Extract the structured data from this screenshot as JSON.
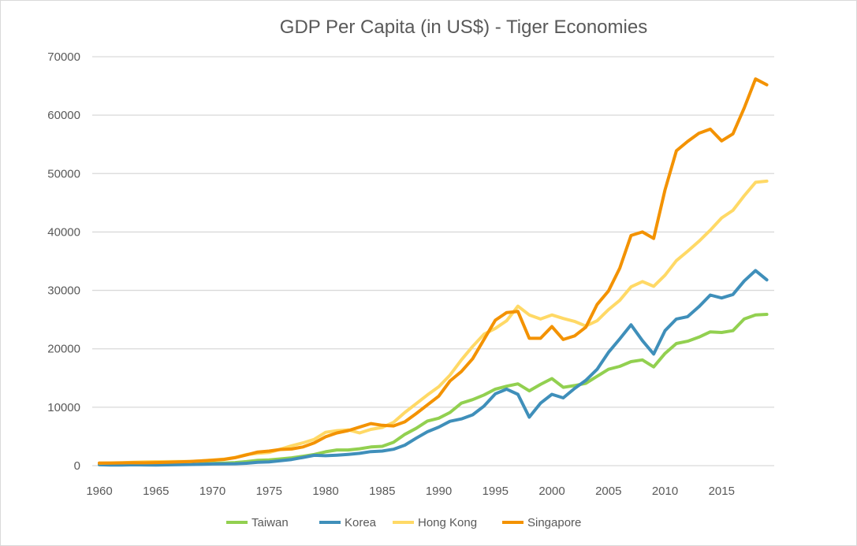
{
  "chart_data": {
    "type": "line",
    "title": "GDP Per Capita (in US$)  - Tiger Economies",
    "xlabel": "",
    "ylabel": "",
    "ylim": [
      0,
      70000
    ],
    "yticks": [
      "0",
      "10000",
      "20000",
      "30000",
      "40000",
      "50000",
      "60000",
      "70000"
    ],
    "xticks": [
      "1960",
      "1965",
      "1970",
      "1975",
      "1980",
      "1985",
      "1990",
      "1995",
      "2000",
      "2005",
      "2010",
      "2015"
    ],
    "x_start": 1960,
    "x_end": 2019,
    "grid": true,
    "legend_position": "bottom",
    "series": [
      {
        "name": "Taiwan",
        "color": "#92d050",
        "values": [
          160,
          150,
          160,
          180,
          200,
          220,
          240,
          270,
          300,
          340,
          390,
          440,
          520,
          690,
          920,
          980,
          1150,
          1330,
          1600,
          1920,
          2380,
          2690,
          2680,
          2880,
          3200,
          3300,
          3990,
          5350,
          6380,
          7630,
          8120,
          9100,
          10700,
          11300,
          12100,
          13100,
          13600,
          14000,
          12800,
          13900,
          14900,
          13400,
          13700,
          14100,
          15300,
          16500,
          17000,
          17800,
          18100,
          16900,
          19200,
          20900,
          21300,
          22000,
          22900,
          22800,
          23100,
          25100,
          25800,
          25900
        ]
      },
      {
        "name": "Korea",
        "color": "#3f8fba",
        "values": [
          158,
          94,
          106,
          146,
          124,
          108,
          133,
          161,
          198,
          243,
          280,
          300,
          320,
          400,
          560,
          650,
          830,
          1050,
          1400,
          1770,
          1700,
          1800,
          1930,
          2100,
          2400,
          2500,
          2800,
          3500,
          4700,
          5800,
          6600,
          7600,
          8000,
          8700,
          10200,
          12300,
          13100,
          12200,
          8300,
          10700,
          12200,
          11600,
          13200,
          14600,
          16500,
          19400,
          21700,
          24100,
          21400,
          19100,
          23100,
          25100,
          25500,
          27200,
          29200,
          28700,
          29300,
          31600,
          33400,
          31800
        ]
      },
      {
        "name": "Hong Kong",
        "color": "#ffd966",
        "values": [
          430,
          470,
          510,
          560,
          630,
          680,
          690,
          720,
          710,
          820,
          960,
          1100,
          1400,
          1900,
          2100,
          2250,
          2800,
          3400,
          3900,
          4500,
          5700,
          5990,
          6130,
          5600,
          6200,
          6540,
          7400,
          9100,
          10600,
          12100,
          13500,
          15500,
          18100,
          20400,
          22500,
          23500,
          24800,
          27300,
          25800,
          25100,
          25800,
          25200,
          24700,
          23900,
          24800,
          26700,
          28300,
          30600,
          31500,
          30700,
          32600,
          35100,
          36700,
          38400,
          40300,
          42400,
          43700,
          46200,
          48500,
          48700
        ]
      },
      {
        "name": "Singapore",
        "color": "#f39200",
        "values": [
          430,
          450,
          470,
          510,
          490,
          520,
          570,
          630,
          710,
          810,
          930,
          1070,
          1360,
          1840,
          2340,
          2490,
          2760,
          2850,
          3190,
          3900,
          4930,
          5600,
          6000,
          6600,
          7200,
          6900,
          6800,
          7500,
          8900,
          10400,
          11900,
          14500,
          16100,
          18300,
          21600,
          24900,
          26200,
          26400,
          21800,
          21800,
          23800,
          21600,
          22200,
          23700,
          27600,
          29900,
          33800,
          39400,
          40000,
          38900,
          47200,
          53900,
          55500,
          56900,
          57600,
          55600,
          56800,
          61200,
          66200,
          65200
        ]
      }
    ]
  }
}
